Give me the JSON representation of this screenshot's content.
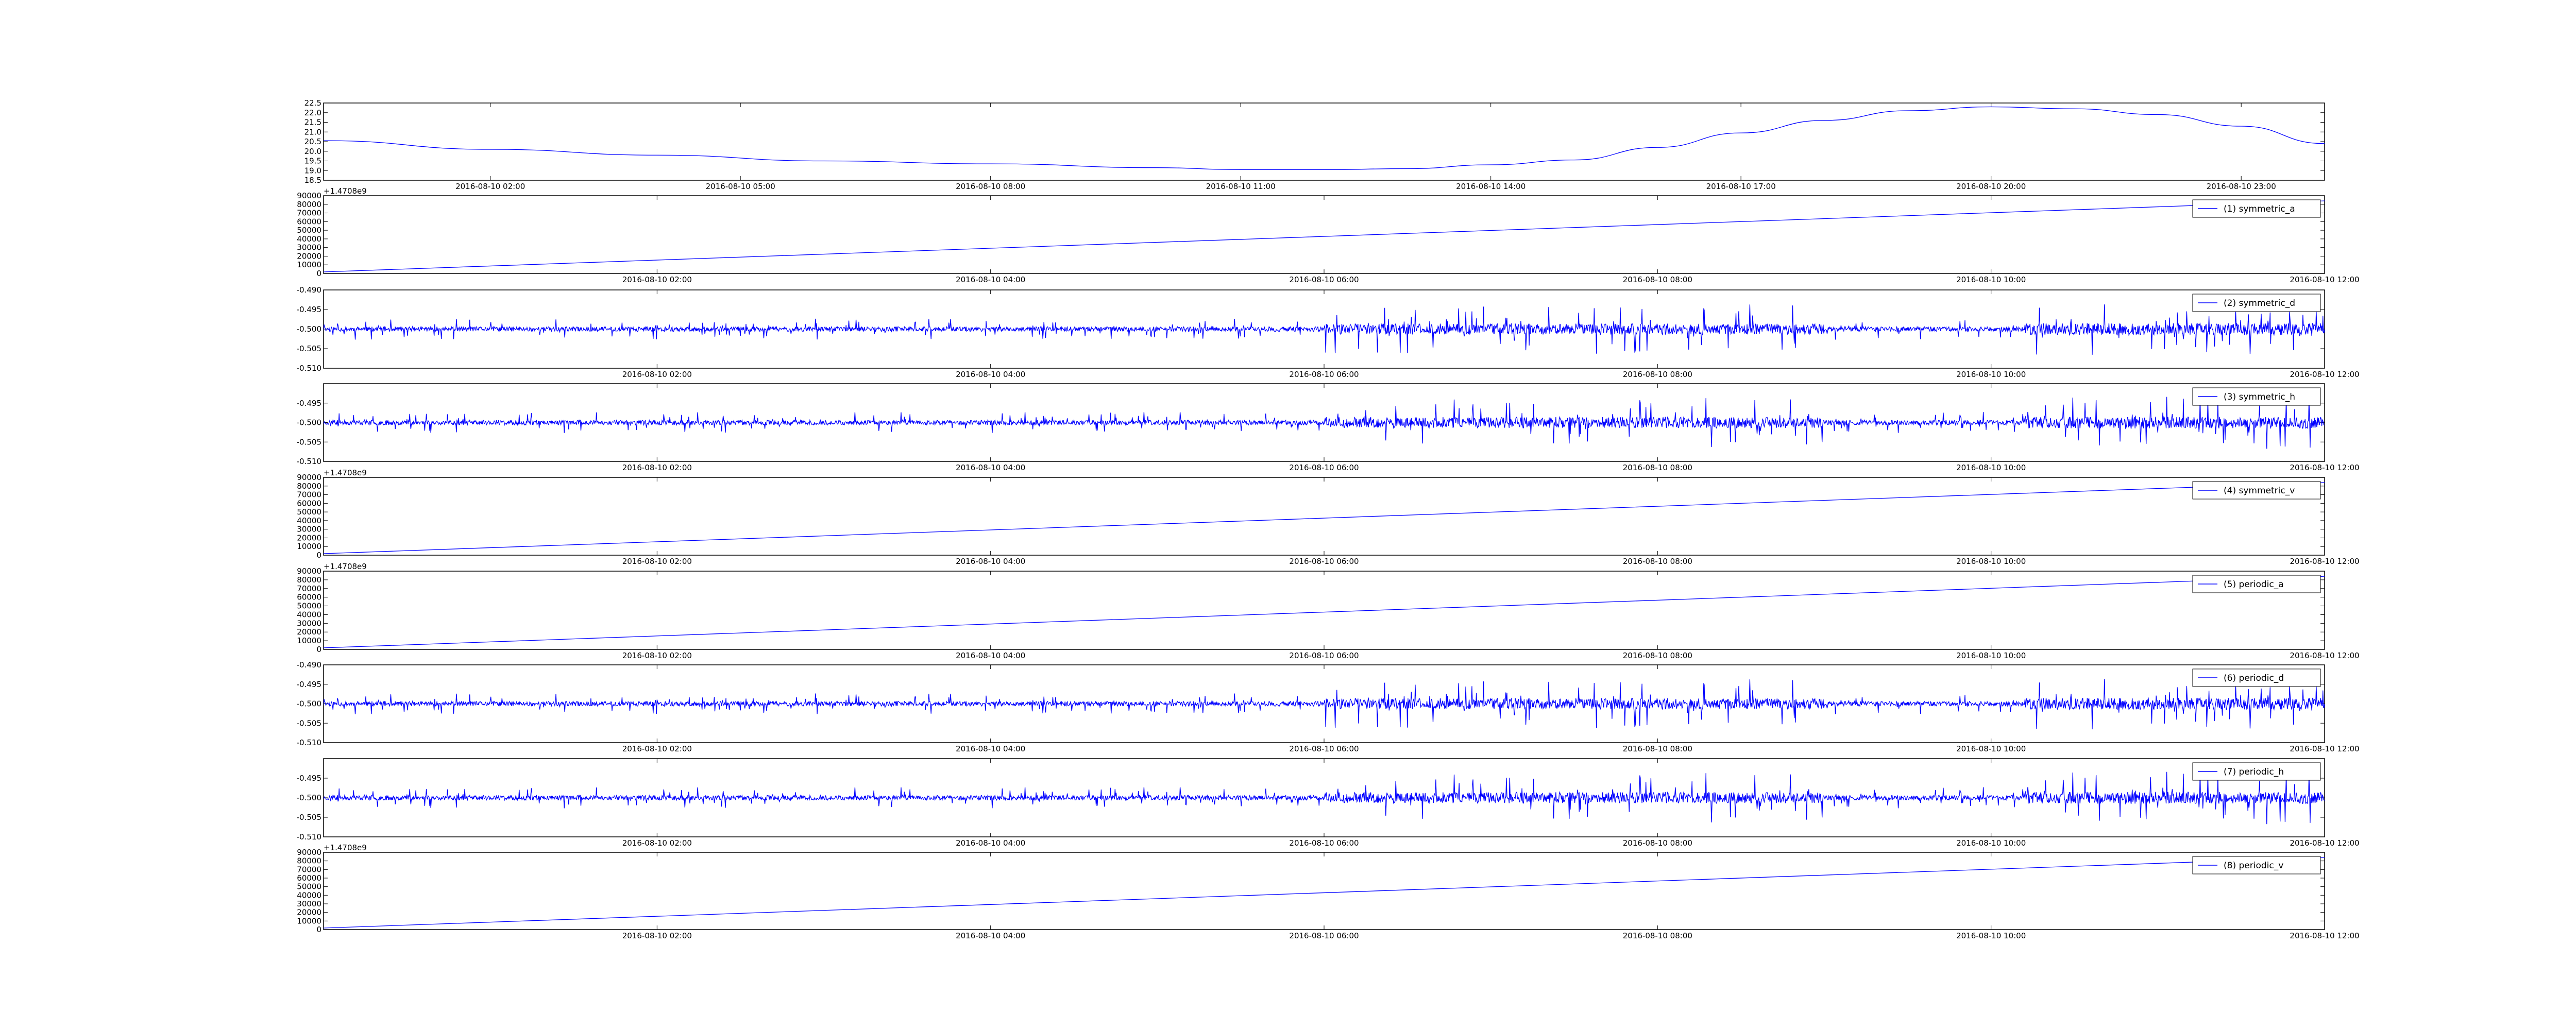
{
  "figure": {
    "background": "#ffffff",
    "line_color": "#0000ff"
  },
  "chart_data": [
    {
      "type": "line",
      "legend": "",
      "ylim": [
        18.5,
        22.5
      ],
      "yticks": [
        "18.5",
        "19.0",
        "19.5",
        "20.0",
        "20.5",
        "21.0",
        "21.5",
        "22.0",
        "22.5"
      ],
      "offset_label": "",
      "xticks": [
        "2016-08-10 02:00",
        "2016-08-10 05:00",
        "2016-08-10 08:00",
        "2016-08-10 11:00",
        "2016-08-10 14:00",
        "2016-08-10 17:00",
        "2016-08-10 20:00",
        "2016-08-10 23:00"
      ],
      "x_hours": [
        0,
        2,
        4,
        6,
        8,
        10,
        11,
        12,
        13,
        14,
        15,
        16,
        17,
        18,
        19,
        20,
        21,
        22,
        23,
        24
      ],
      "y": [
        20.55,
        20.1,
        19.8,
        19.5,
        19.35,
        19.15,
        19.05,
        19.05,
        19.1,
        19.3,
        19.55,
        20.2,
        20.95,
        21.6,
        22.1,
        22.3,
        22.2,
        21.9,
        21.3,
        20.4
      ]
    },
    {
      "type": "line",
      "legend": "(1) symmetric_a",
      "ylim": [
        0,
        90000
      ],
      "yticks": [
        "0",
        "10000",
        "20000",
        "30000",
        "40000",
        "50000",
        "60000",
        "70000",
        "80000",
        "90000"
      ],
      "offset_label": "+1.4708e9",
      "xticks": [
        "2016-08-10 02:00",
        "2016-08-10 04:00",
        "2016-08-10 06:00",
        "2016-08-10 08:00",
        "2016-08-10 10:00",
        "2016-08-10 12:00"
      ],
      "x": [
        0,
        43200
      ],
      "y": [
        1800,
        84000
      ]
    },
    {
      "type": "line",
      "legend": "(2) symmetric_d",
      "ylim": [
        -0.51,
        -0.49
      ],
      "yticks": [
        "-0.510",
        "-0.505",
        "-0.500",
        "-0.495",
        "-0.490"
      ],
      "offset_label": "",
      "xticks": [
        "2016-08-10 02:00",
        "2016-08-10 04:00",
        "2016-08-10 06:00",
        "2016-08-10 08:00",
        "2016-08-10 10:00",
        "2016-08-10 12:00"
      ],
      "baseline": -0.5,
      "noise_seed": 11
    },
    {
      "type": "line",
      "legend": "(3) symmetric_h",
      "ylim": [
        -0.51,
        -0.49
      ],
      "yticks": [
        "-0.510",
        "-0.505",
        "-0.500",
        "-0.495"
      ],
      "offset_label": "",
      "xticks": [
        "2016-08-10 02:00",
        "2016-08-10 04:00",
        "2016-08-10 06:00",
        "2016-08-10 08:00",
        "2016-08-10 10:00",
        "2016-08-10 12:00"
      ],
      "baseline": -0.5,
      "noise_seed": 23
    },
    {
      "type": "line",
      "legend": "(4) symmetric_v",
      "ylim": [
        0,
        90000
      ],
      "yticks": [
        "0",
        "10000",
        "20000",
        "30000",
        "40000",
        "50000",
        "60000",
        "70000",
        "80000",
        "90000"
      ],
      "offset_label": "+1.4708e9",
      "xticks": [
        "2016-08-10 02:00",
        "2016-08-10 04:00",
        "2016-08-10 06:00",
        "2016-08-10 08:00",
        "2016-08-10 10:00",
        "2016-08-10 12:00"
      ],
      "x": [
        0,
        43200
      ],
      "y": [
        1800,
        84000
      ]
    },
    {
      "type": "line",
      "legend": "(5) periodic_a",
      "ylim": [
        0,
        90000
      ],
      "yticks": [
        "0",
        "10000",
        "20000",
        "30000",
        "40000",
        "50000",
        "60000",
        "70000",
        "80000",
        "90000"
      ],
      "offset_label": "+1.4708e9",
      "xticks": [
        "2016-08-10 02:00",
        "2016-08-10 04:00",
        "2016-08-10 06:00",
        "2016-08-10 08:00",
        "2016-08-10 10:00",
        "2016-08-10 12:00"
      ],
      "x": [
        0,
        43200
      ],
      "y": [
        1800,
        84000
      ]
    },
    {
      "type": "line",
      "legend": "(6) periodic_d",
      "ylim": [
        -0.51,
        -0.49
      ],
      "yticks": [
        "-0.510",
        "-0.505",
        "-0.500",
        "-0.495",
        "-0.490"
      ],
      "offset_label": "",
      "xticks": [
        "2016-08-10 02:00",
        "2016-08-10 04:00",
        "2016-08-10 06:00",
        "2016-08-10 08:00",
        "2016-08-10 10:00",
        "2016-08-10 12:00"
      ],
      "baseline": -0.5,
      "noise_seed": 11
    },
    {
      "type": "line",
      "legend": "(7) periodic_h",
      "ylim": [
        -0.51,
        -0.49
      ],
      "yticks": [
        "-0.510",
        "-0.505",
        "-0.500",
        "-0.495"
      ],
      "offset_label": "",
      "xticks": [
        "2016-08-10 02:00",
        "2016-08-10 04:00",
        "2016-08-10 06:00",
        "2016-08-10 08:00",
        "2016-08-10 10:00",
        "2016-08-10 12:00"
      ],
      "baseline": -0.5,
      "noise_seed": 23
    },
    {
      "type": "line",
      "legend": "(8) periodic_v",
      "ylim": [
        0,
        90000
      ],
      "yticks": [
        "0",
        "10000",
        "20000",
        "30000",
        "40000",
        "50000",
        "60000",
        "70000",
        "80000",
        "90000"
      ],
      "offset_label": "+1.4708e9",
      "xticks": [
        "2016-08-10 02:00",
        "2016-08-10 04:00",
        "2016-08-10 06:00",
        "2016-08-10 08:00",
        "2016-08-10 10:00",
        "2016-08-10 12:00"
      ],
      "x": [
        0,
        43200
      ],
      "y": [
        1800,
        84000
      ]
    }
  ]
}
